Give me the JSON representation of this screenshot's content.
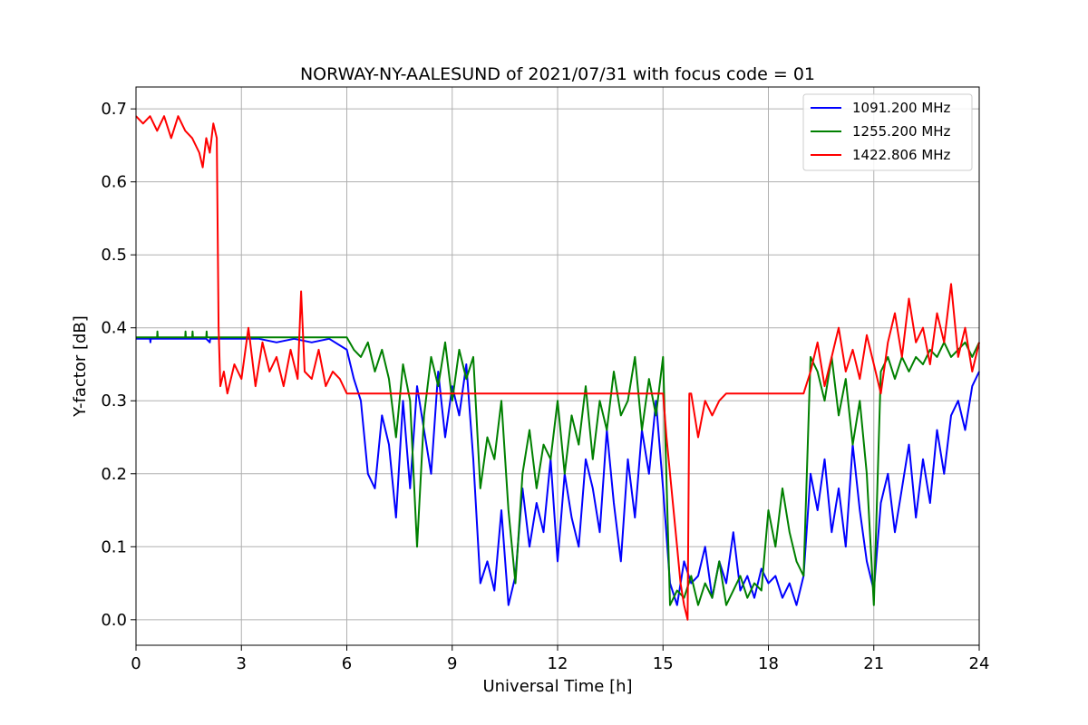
{
  "chart_data": {
    "type": "line",
    "title": "NORWAY-NY-AALESUND of 2021/07/31 with focus code = 01",
    "xlabel": "Universal Time [h]",
    "ylabel": "Y-factor [dB]",
    "xlim": [
      0,
      24
    ],
    "ylim": [
      -0.035,
      0.73
    ],
    "xticks": [
      0,
      3,
      6,
      9,
      12,
      15,
      18,
      21,
      24
    ],
    "xtick_labels": [
      "0",
      "3",
      "6",
      "9",
      "12",
      "15",
      "18",
      "21",
      "24"
    ],
    "yticks": [
      0.0,
      0.1,
      0.2,
      0.3,
      0.4,
      0.5,
      0.6,
      0.7
    ],
    "ytick_labels": [
      "0.0",
      "0.1",
      "0.2",
      "0.3",
      "0.4",
      "0.5",
      "0.6",
      "0.7"
    ],
    "grid": true,
    "legend_position": "top-right",
    "series": [
      {
        "name": "1091.200 MHz",
        "color": "#0000ff",
        "x": [
          0,
          0.4,
          0.41,
          0.42,
          1.0,
          1.5,
          2.0,
          2.1,
          2.11,
          2.12,
          2.5,
          3.0,
          3.5,
          4.0,
          4.5,
          5.0,
          5.5,
          6.0,
          6.2,
          6.4,
          6.6,
          6.8,
          7.0,
          7.2,
          7.4,
          7.6,
          7.8,
          8.0,
          8.2,
          8.4,
          8.6,
          8.8,
          9.0,
          9.2,
          9.4,
          9.6,
          9.8,
          10.0,
          10.2,
          10.4,
          10.6,
          10.8,
          11.0,
          11.2,
          11.4,
          11.6,
          11.8,
          12.0,
          12.2,
          12.4,
          12.6,
          12.8,
          13.0,
          13.2,
          13.4,
          13.6,
          13.8,
          14.0,
          14.2,
          14.4,
          14.6,
          14.8,
          15.0,
          15.2,
          15.4,
          15.6,
          15.8,
          16.0,
          16.2,
          16.4,
          16.6,
          16.8,
          17.0,
          17.2,
          17.4,
          17.6,
          17.8,
          18.0,
          18.2,
          18.4,
          18.6,
          18.8,
          19.0,
          19.2,
          19.4,
          19.6,
          19.8,
          20.0,
          20.2,
          20.4,
          20.6,
          20.8,
          21.0,
          21.2,
          21.4,
          21.6,
          21.8,
          22.0,
          22.2,
          22.4,
          22.6,
          22.8,
          23.0,
          23.2,
          23.4,
          23.6,
          23.8,
          24.0
        ],
        "y": [
          0.385,
          0.385,
          0.38,
          0.385,
          0.385,
          0.385,
          0.385,
          0.38,
          0.385,
          0.385,
          0.385,
          0.385,
          0.385,
          0.38,
          0.385,
          0.38,
          0.385,
          0.37,
          0.33,
          0.3,
          0.2,
          0.18,
          0.28,
          0.24,
          0.14,
          0.3,
          0.18,
          0.32,
          0.26,
          0.2,
          0.34,
          0.25,
          0.32,
          0.28,
          0.35,
          0.22,
          0.05,
          0.08,
          0.04,
          0.15,
          0.02,
          0.06,
          0.18,
          0.1,
          0.16,
          0.12,
          0.22,
          0.08,
          0.2,
          0.14,
          0.1,
          0.22,
          0.18,
          0.12,
          0.26,
          0.16,
          0.08,
          0.22,
          0.14,
          0.26,
          0.2,
          0.3,
          0.18,
          0.05,
          0.02,
          0.08,
          0.05,
          0.06,
          0.1,
          0.03,
          0.08,
          0.05,
          0.12,
          0.04,
          0.06,
          0.03,
          0.07,
          0.05,
          0.06,
          0.03,
          0.05,
          0.02,
          0.06,
          0.2,
          0.15,
          0.22,
          0.12,
          0.18,
          0.1,
          0.24,
          0.15,
          0.08,
          0.04,
          0.16,
          0.2,
          0.12,
          0.18,
          0.24,
          0.14,
          0.22,
          0.16,
          0.26,
          0.2,
          0.28,
          0.3,
          0.26,
          0.32,
          0.34
        ]
      },
      {
        "name": "1255.200 MHz",
        "color": "#008000",
        "x": [
          0,
          0.6,
          0.61,
          0.62,
          1.4,
          1.41,
          1.42,
          1.6,
          1.61,
          1.62,
          2.0,
          2.01,
          2.02,
          3.0,
          4.0,
          5.0,
          6.0,
          6.2,
          6.4,
          6.6,
          6.8,
          7.0,
          7.2,
          7.4,
          7.6,
          7.8,
          8.0,
          8.2,
          8.4,
          8.6,
          8.8,
          9.0,
          9.2,
          9.4,
          9.6,
          9.8,
          10.0,
          10.2,
          10.4,
          10.6,
          10.8,
          11.0,
          11.2,
          11.4,
          11.6,
          11.8,
          12.0,
          12.2,
          12.4,
          12.6,
          12.8,
          13.0,
          13.2,
          13.4,
          13.6,
          13.8,
          14.0,
          14.2,
          14.4,
          14.6,
          14.8,
          15.0,
          15.2,
          15.4,
          15.6,
          15.8,
          16.0,
          16.2,
          16.4,
          16.6,
          16.8,
          17.0,
          17.2,
          17.4,
          17.6,
          17.8,
          18.0,
          18.2,
          18.4,
          18.6,
          18.8,
          19.0,
          19.2,
          19.4,
          19.6,
          19.8,
          20.0,
          20.2,
          20.4,
          20.6,
          20.8,
          21.0,
          21.2,
          21.4,
          21.6,
          21.8,
          22.0,
          22.2,
          22.4,
          22.6,
          22.8,
          23.0,
          23.2,
          23.4,
          23.6,
          23.8,
          24.0
        ],
        "y": [
          0.387,
          0.387,
          0.395,
          0.387,
          0.387,
          0.395,
          0.387,
          0.387,
          0.395,
          0.387,
          0.387,
          0.395,
          0.387,
          0.387,
          0.387,
          0.387,
          0.387,
          0.37,
          0.36,
          0.38,
          0.34,
          0.37,
          0.33,
          0.25,
          0.35,
          0.3,
          0.1,
          0.28,
          0.36,
          0.32,
          0.38,
          0.3,
          0.37,
          0.33,
          0.36,
          0.18,
          0.25,
          0.22,
          0.3,
          0.15,
          0.05,
          0.2,
          0.26,
          0.18,
          0.24,
          0.22,
          0.3,
          0.2,
          0.28,
          0.24,
          0.32,
          0.22,
          0.3,
          0.26,
          0.34,
          0.28,
          0.3,
          0.36,
          0.26,
          0.33,
          0.28,
          0.36,
          0.02,
          0.04,
          0.03,
          0.06,
          0.02,
          0.05,
          0.03,
          0.08,
          0.02,
          0.04,
          0.06,
          0.03,
          0.05,
          0.04,
          0.15,
          0.1,
          0.18,
          0.12,
          0.08,
          0.06,
          0.36,
          0.34,
          0.3,
          0.36,
          0.28,
          0.33,
          0.24,
          0.3,
          0.2,
          0.02,
          0.34,
          0.36,
          0.33,
          0.36,
          0.34,
          0.36,
          0.35,
          0.37,
          0.36,
          0.38,
          0.36,
          0.37,
          0.38,
          0.36,
          0.38
        ]
      },
      {
        "name": "1422.806 MHz",
        "color": "#ff0000",
        "x": [
          0,
          0.2,
          0.4,
          0.6,
          0.8,
          1.0,
          1.2,
          1.4,
          1.6,
          1.8,
          1.9,
          2.0,
          2.1,
          2.2,
          2.3,
          2.35,
          2.4,
          2.5,
          2.6,
          2.8,
          3.0,
          3.2,
          3.4,
          3.6,
          3.8,
          4.0,
          4.2,
          4.4,
          4.6,
          4.7,
          4.8,
          5.0,
          5.2,
          5.4,
          5.6,
          5.8,
          6.0,
          7.0,
          8.0,
          9.0,
          10.0,
          11.0,
          12.0,
          13.0,
          14.0,
          15.0,
          15.1,
          15.2,
          15.3,
          15.4,
          15.5,
          15.6,
          15.7,
          15.75,
          15.8,
          16.0,
          16.2,
          16.4,
          16.6,
          16.8,
          17.0,
          17.5,
          18.0,
          18.5,
          19.0,
          19.2,
          19.4,
          19.6,
          19.8,
          20.0,
          20.2,
          20.4,
          20.6,
          20.8,
          21.0,
          21.2,
          21.4,
          21.6,
          21.8,
          22.0,
          22.2,
          22.4,
          22.6,
          22.8,
          23.0,
          23.2,
          23.4,
          23.6,
          23.8,
          24.0
        ],
        "y": [
          0.69,
          0.68,
          0.69,
          0.67,
          0.69,
          0.66,
          0.69,
          0.67,
          0.66,
          0.64,
          0.62,
          0.66,
          0.64,
          0.68,
          0.66,
          0.4,
          0.32,
          0.34,
          0.31,
          0.35,
          0.33,
          0.4,
          0.32,
          0.38,
          0.34,
          0.36,
          0.32,
          0.37,
          0.33,
          0.45,
          0.34,
          0.33,
          0.37,
          0.32,
          0.34,
          0.33,
          0.31,
          0.31,
          0.31,
          0.31,
          0.31,
          0.31,
          0.31,
          0.31,
          0.31,
          0.31,
          0.25,
          0.2,
          0.15,
          0.1,
          0.05,
          0.02,
          0.0,
          0.31,
          0.31,
          0.25,
          0.3,
          0.28,
          0.3,
          0.31,
          0.31,
          0.31,
          0.31,
          0.31,
          0.31,
          0.34,
          0.38,
          0.32,
          0.36,
          0.4,
          0.34,
          0.37,
          0.33,
          0.39,
          0.35,
          0.31,
          0.38,
          0.42,
          0.36,
          0.44,
          0.38,
          0.4,
          0.35,
          0.42,
          0.38,
          0.46,
          0.36,
          0.4,
          0.34,
          0.38
        ]
      }
    ]
  }
}
